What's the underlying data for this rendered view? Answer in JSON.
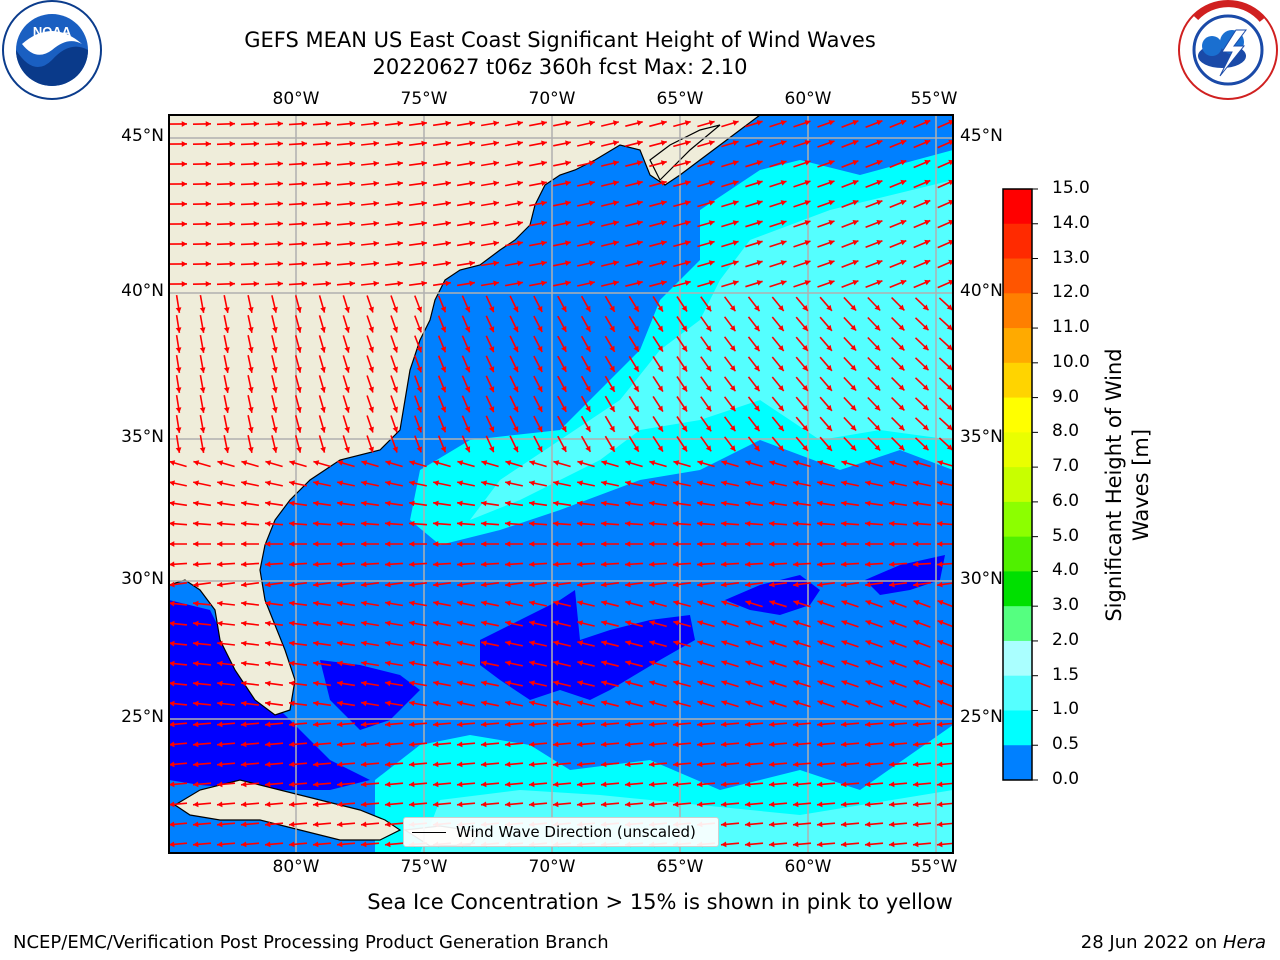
{
  "title": {
    "line1": "GEFS MEAN US East Coast Significant Height of Wind Waves",
    "line2": "20220627 t06z 360h fcst   Max: 2.10"
  },
  "logos": {
    "noaa_text": "NOAA",
    "noaa_ring": "NATIONAL OCEANIC AND ATMOSPHERIC ADMINISTRATION · U.S. DEPARTMENT OF COMMERCE",
    "nws_ring": "NATIONAL WEATHER SERVICE"
  },
  "map": {
    "lon_ticks": [
      "80°W",
      "75°W",
      "70°W",
      "65°W",
      "60°W",
      "55°W"
    ],
    "lat_ticks": [
      "45°N",
      "40°N",
      "35°N",
      "30°N",
      "25°N"
    ],
    "legend": "Wind Wave Direction (unscaled)",
    "colors": {
      "land": "#efedda",
      "level_0_0": "#0000ff",
      "level_0_5": "#0080ff",
      "level_1_0": "#00ffff",
      "level_1_5": "#54ffff",
      "arrows": "#ff0000",
      "grid": "#b0b0b0"
    }
  },
  "colorbar": {
    "levels": [
      "15.0",
      "14.0",
      "13.0",
      "12.0",
      "11.0",
      "10.0",
      "9.0",
      "8.0",
      "7.0",
      "6.0",
      "5.0",
      "4.0",
      "3.0",
      "2.0",
      "1.5",
      "1.0",
      "0.5",
      "0.0"
    ],
    "colors": [
      "#ff0000",
      "#ff2a00",
      "#ff5500",
      "#ff7f00",
      "#ffaa00",
      "#ffd400",
      "#ffff00",
      "#eaff00",
      "#c8ff00",
      "#8cff00",
      "#50f000",
      "#00e000",
      "#55ff80",
      "#aaffff",
      "#55ffff",
      "#00ffff",
      "#0080ff",
      "#0000ff"
    ],
    "label": "Significant Height of Wind Waves [m]"
  },
  "caption": "Sea Ice Concentration > 15% is shown in pink to yellow",
  "footer": {
    "left": "NCEP/EMC/Verification Post Processing Product Generation Branch",
    "right_prefix": "28 Jun 2022 on ",
    "right_host": "Hera"
  }
}
